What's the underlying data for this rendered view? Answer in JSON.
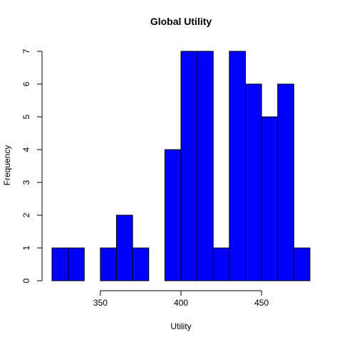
{
  "chart_data": {
    "type": "bar",
    "title": "Global Utility",
    "xlabel": "Utility",
    "ylabel": "Frequency",
    "xlim": [
      320,
      480
    ],
    "ylim": [
      0,
      7
    ],
    "x_ticks": [
      "350",
      "400",
      "450"
    ],
    "y_ticks": [
      "0",
      "1",
      "2",
      "3",
      "4",
      "5",
      "6",
      "7"
    ],
    "bar_color": "#0000ff",
    "edge_color": "#000000",
    "bins": [
      {
        "from": 320,
        "to": 330,
        "count": 1
      },
      {
        "from": 330,
        "to": 340,
        "count": 1
      },
      {
        "from": 340,
        "to": 350,
        "count": 0
      },
      {
        "from": 350,
        "to": 360,
        "count": 1
      },
      {
        "from": 360,
        "to": 370,
        "count": 2
      },
      {
        "from": 370,
        "to": 380,
        "count": 1
      },
      {
        "from": 380,
        "to": 390,
        "count": 0
      },
      {
        "from": 390,
        "to": 400,
        "count": 4
      },
      {
        "from": 400,
        "to": 410,
        "count": 7
      },
      {
        "from": 410,
        "to": 420,
        "count": 7
      },
      {
        "from": 420,
        "to": 430,
        "count": 1
      },
      {
        "from": 430,
        "to": 440,
        "count": 7
      },
      {
        "from": 440,
        "to": 450,
        "count": 6
      },
      {
        "from": 450,
        "to": 460,
        "count": 5
      },
      {
        "from": 460,
        "to": 470,
        "count": 6
      },
      {
        "from": 470,
        "to": 480,
        "count": 1
      }
    ],
    "grid": false
  }
}
